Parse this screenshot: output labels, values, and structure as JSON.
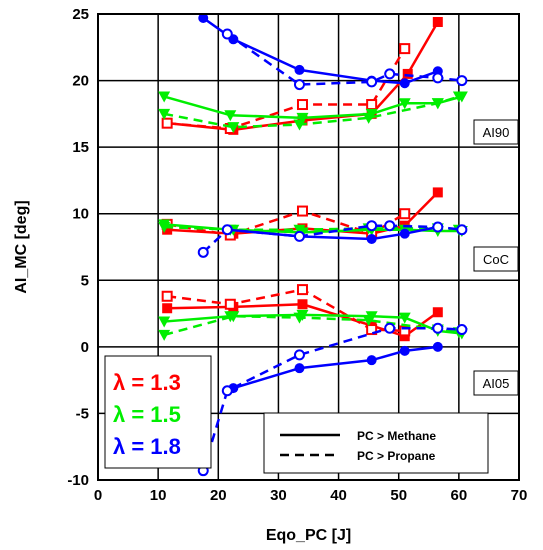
{
  "chart_data": {
    "type": "line",
    "xlabel": "Eqo_PC [J]",
    "ylabel": "AI_MC [deg]",
    "xlim": [
      0,
      70
    ],
    "ylim": [
      -10,
      25
    ],
    "xticks": [
      "0",
      "10",
      "20",
      "30",
      "40",
      "50",
      "60",
      "70"
    ],
    "yticks": [
      "-10",
      "-5",
      "0",
      "5",
      "10",
      "15",
      "20",
      "25"
    ],
    "grid": true,
    "group_labels": [
      "AI90",
      "CoC",
      "AI05"
    ],
    "lambda_legend": [
      {
        "text": "λ = 1.3",
        "color": "#ff0000"
      },
      {
        "text": "λ = 1.5",
        "color": "#00ee00"
      },
      {
        "text": "λ = 1.8",
        "color": "#0000ff"
      }
    ],
    "style_legend": [
      {
        "text": "PC > Methane",
        "dash": "solid"
      },
      {
        "text": "PC > Propane",
        "dash": "dashed"
      }
    ],
    "series": [
      {
        "group": "AI90",
        "lambda": "1.3",
        "fuel": "Methane",
        "color": "#ff0000",
        "marker": "square-filled",
        "x": [
          11.5,
          22.5,
          34,
          45.5,
          51.5,
          56.5
        ],
        "y": [
          16.8,
          16.3,
          17.0,
          17.5,
          20.5,
          24.4
        ]
      },
      {
        "group": "AI90",
        "lambda": "1.3",
        "fuel": "Propane",
        "color": "#ff0000",
        "marker": "square-open",
        "x": [
          11.5,
          22,
          34,
          45.5,
          51
        ],
        "y": [
          16.8,
          16.4,
          18.2,
          18.2,
          22.4
        ]
      },
      {
        "group": "AI90",
        "lambda": "1.5",
        "fuel": "Methane",
        "color": "#00ee00",
        "marker": "triangle-down",
        "x": [
          11,
          22,
          34,
          45.5,
          51,
          56.5,
          60.5
        ],
        "y": [
          18.8,
          17.4,
          17.2,
          17.5,
          18.3,
          18.3,
          18.8
        ]
      },
      {
        "group": "AI90",
        "lambda": "1.5",
        "fuel": "Propane",
        "color": "#00ee00",
        "marker": "triangle-down",
        "x": [
          11,
          22.5,
          33.5,
          45,
          56.5,
          60
        ],
        "y": [
          17.5,
          16.5,
          16.7,
          17.2,
          18.3,
          18.8
        ]
      },
      {
        "group": "AI90",
        "lambda": "1.8",
        "fuel": "Methane",
        "color": "#0000ff",
        "marker": "circle-filled",
        "x": [
          17.5,
          22.5,
          33.5,
          45.5,
          51,
          56.5
        ],
        "y": [
          24.7,
          23.1,
          20.8,
          20.0,
          19.8,
          20.7
        ]
      },
      {
        "group": "AI90",
        "lambda": "1.8",
        "fuel": "Propane",
        "color": "#0000ff",
        "marker": "circle-open",
        "x": [
          21.5,
          33.5,
          45.5,
          48.5,
          56.5,
          60.5
        ],
        "y": [
          23.5,
          19.7,
          19.9,
          20.5,
          20.2,
          20.0
        ]
      },
      {
        "group": "CoC",
        "lambda": "1.3",
        "fuel": "Methane",
        "color": "#ff0000",
        "marker": "square-filled",
        "x": [
          11.5,
          22.5,
          34,
          45.5,
          51,
          56.5
        ],
        "y": [
          8.8,
          8.5,
          8.9,
          8.5,
          9.1,
          11.6
        ]
      },
      {
        "group": "CoC",
        "lambda": "1.3",
        "fuel": "Propane",
        "color": "#ff0000",
        "marker": "square-open",
        "x": [
          11.5,
          22,
          34,
          45.5,
          51
        ],
        "y": [
          9.2,
          8.4,
          10.2,
          8.5,
          10.0
        ]
      },
      {
        "group": "CoC",
        "lambda": "1.5",
        "fuel": "Methane",
        "color": "#00ee00",
        "marker": "triangle-down",
        "x": [
          11,
          22,
          34,
          45.5,
          51,
          56.5,
          60.5
        ],
        "y": [
          9.2,
          8.8,
          8.6,
          8.8,
          8.8,
          8.7,
          8.7
        ]
      },
      {
        "group": "CoC",
        "lambda": "1.5",
        "fuel": "Propane",
        "color": "#00ee00",
        "marker": "triangle-down",
        "x": [
          11,
          22.5,
          33.5,
          45,
          56.5,
          60
        ],
        "y": [
          9.0,
          8.8,
          8.8,
          8.9,
          8.9,
          8.8
        ]
      },
      {
        "group": "CoC",
        "lambda": "1.8",
        "fuel": "Methane",
        "color": "#0000ff",
        "marker": "circle-filled",
        "x": [
          21.5,
          33.5,
          45.5,
          51,
          56.5
        ],
        "y": [
          8.8,
          8.3,
          8.1,
          8.5,
          9.0
        ]
      },
      {
        "group": "CoC",
        "lambda": "1.8",
        "fuel": "Propane",
        "color": "#0000ff",
        "marker": "circle-open",
        "x": [
          17.5,
          21.5,
          33.5,
          45.5,
          48.5,
          56.5,
          60.5
        ],
        "y": [
          7.1,
          8.8,
          8.3,
          9.1,
          9.1,
          9.0,
          8.8
        ]
      },
      {
        "group": "AI05",
        "lambda": "1.3",
        "fuel": "Methane",
        "color": "#ff0000",
        "marker": "square-filled",
        "x": [
          11.5,
          22.5,
          34,
          45.5,
          51,
          56.5
        ],
        "y": [
          2.9,
          3.0,
          3.2,
          1.6,
          0.8,
          2.6
        ]
      },
      {
        "group": "AI05",
        "lambda": "1.3",
        "fuel": "Propane",
        "color": "#ff0000",
        "marker": "square-open",
        "x": [
          11.5,
          22,
          34,
          45.5,
          51
        ],
        "y": [
          3.8,
          3.2,
          4.3,
          1.3,
          1.2
        ]
      },
      {
        "group": "AI05",
        "lambda": "1.5",
        "fuel": "Methane",
        "color": "#00ee00",
        "marker": "triangle-down",
        "x": [
          11,
          22,
          34,
          45.5,
          51,
          56.5,
          60.5
        ],
        "y": [
          1.9,
          2.3,
          2.4,
          2.3,
          2.2,
          1.2,
          1.0
        ]
      },
      {
        "group": "AI05",
        "lambda": "1.5",
        "fuel": "Propane",
        "color": "#00ee00",
        "marker": "triangle-down",
        "x": [
          11,
          22.5,
          33.5,
          45,
          56.5,
          60
        ],
        "y": [
          0.9,
          2.3,
          2.2,
          2.0,
          1.3,
          1.1
        ]
      },
      {
        "group": "AI05",
        "lambda": "1.8",
        "fuel": "Methane",
        "color": "#0000ff",
        "marker": "circle-filled",
        "x": [
          21.5,
          22.5,
          33.5,
          45.5,
          51,
          56.5
        ],
        "y": [
          -3.3,
          -3.1,
          -1.6,
          -1.0,
          -0.3,
          0.0
        ]
      },
      {
        "group": "AI05",
        "lambda": "1.8",
        "fuel": "Propane",
        "color": "#0000ff",
        "marker": "circle-open",
        "x": [
          17.5,
          21.5,
          33.5,
          48.5,
          56.5,
          60.5
        ],
        "y": [
          -9.3,
          -3.3,
          -0.6,
          1.4,
          1.4,
          1.3
        ]
      }
    ]
  }
}
